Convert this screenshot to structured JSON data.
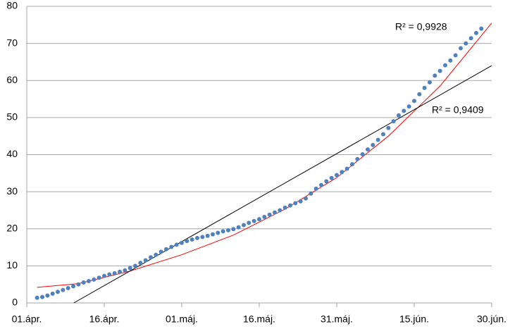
{
  "chart_data": {
    "type": "scatter",
    "x": [
      2,
      3,
      4,
      5,
      6,
      7,
      8,
      9,
      10,
      11,
      12,
      13,
      14,
      15,
      16,
      17,
      18,
      19,
      20,
      21,
      22,
      23,
      24,
      25,
      26,
      27,
      28,
      29,
      30,
      31,
      32,
      33,
      34,
      35,
      36,
      37,
      38,
      39,
      40,
      41,
      42,
      43,
      44,
      45,
      46,
      47,
      48,
      49,
      50,
      51,
      52,
      53,
      54,
      55,
      56,
      57,
      58,
      59,
      60,
      61,
      62,
      63,
      64,
      65,
      66,
      67,
      68,
      69,
      70,
      71,
      72,
      73,
      74,
      75,
      76,
      77,
      78,
      79,
      80,
      81,
      82,
      83,
      84,
      85,
      86,
      87,
      88
    ],
    "series": [
      {
        "color": "#4f81bd",
        "values": [
          1.4,
          1.6,
          2.0,
          2.5,
          3.0,
          3.5,
          4.0,
          4.5,
          5.0,
          5.5,
          5.9,
          6.3,
          6.8,
          7.3,
          7.7,
          8.0,
          8.4,
          8.8,
          9.4,
          10.0,
          10.8,
          11.5,
          12.3,
          13.0,
          13.8,
          14.5,
          15.1,
          15.7,
          16.2,
          16.7,
          17.1,
          17.5,
          17.8,
          18.1,
          18.5,
          18.9,
          19.3,
          19.6,
          19.9,
          20.4,
          21.0,
          21.6,
          22.1,
          22.6,
          23.2,
          23.8,
          24.4,
          25.0,
          25.7,
          26.3,
          26.9,
          27.4,
          28.2,
          29.5,
          30.8,
          31.8,
          32.8,
          33.7,
          34.5,
          35.3,
          36.2,
          37.4,
          38.8,
          40.1,
          41.4,
          42.6,
          44.0,
          45.5,
          47.2,
          49.0,
          50.6,
          51.8,
          53.0,
          54.5,
          56.3,
          58.0,
          59.5,
          61.3,
          62.6,
          64.1,
          65.4,
          66.8,
          68.7,
          70.0,
          71.4,
          72.8,
          74.0
        ]
      }
    ],
    "trendlines": [
      {
        "kind": "polynomial",
        "color": "#ff0000",
        "label": "R² = 0,9928",
        "x": [
          2,
          10,
          20,
          30,
          40,
          50,
          60,
          70,
          80,
          90
        ],
        "values": [
          4.2,
          5.2,
          8.6,
          13.0,
          18.3,
          25.3,
          33.8,
          45.0,
          58.5,
          75.5
        ]
      },
      {
        "kind": "linear",
        "color": "#000000",
        "label": "R² = 0,9409",
        "x": [
          9.1,
          90
        ],
        "values": [
          0,
          64
        ]
      }
    ],
    "xlim": [
      0,
      90
    ],
    "xticks": [
      {
        "value": 0,
        "label": "01.ápr."
      },
      {
        "value": 15,
        "label": "16.ápr."
      },
      {
        "value": 30,
        "label": "01.máj."
      },
      {
        "value": 45,
        "label": "16.máj."
      },
      {
        "value": 60,
        "label": "31.máj."
      },
      {
        "value": 75,
        "label": "15.jún."
      },
      {
        "value": 90,
        "label": "30.jún."
      }
    ],
    "ylim": [
      0,
      80
    ],
    "yticks": [
      0,
      10,
      20,
      30,
      40,
      50,
      60,
      70,
      80
    ],
    "grid": true
  }
}
